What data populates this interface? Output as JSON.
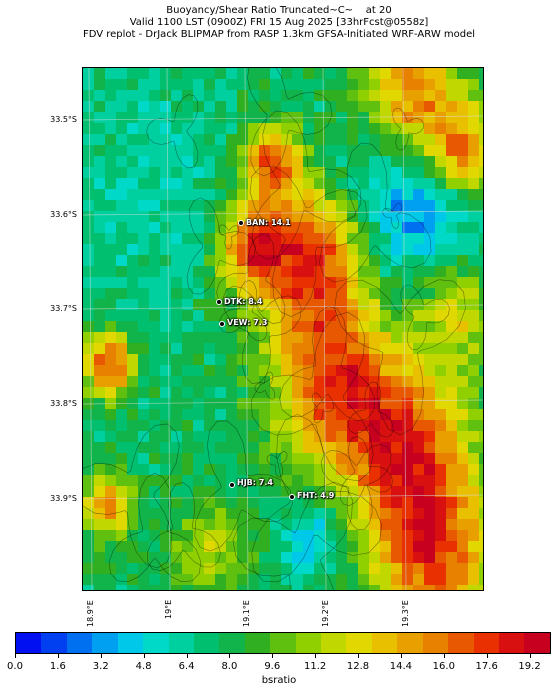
{
  "title": {
    "line1": "Buoyancy/Shear Ratio Truncated~C~    at 20",
    "line2": "Valid 1100 LST (0900Z) FRI 15 Aug 2025 [33hrFcst@0558z]",
    "line3": "FDV replot - DrJack BLIPMAP from RASP 1.3km GFSA-Initiated WRF-ARW model"
  },
  "map": {
    "lat_labels": [
      "33.5°S",
      "33.6°S",
      "33.7°S",
      "33.8°S",
      "33.9°S"
    ],
    "lon_labels": [
      "18.9°E",
      "19°E",
      "19.1°E",
      "19.2°E",
      "19.3°E"
    ],
    "stations": [
      {
        "name": "BAN: 14.1",
        "value": 14.1
      },
      {
        "name": "DTK: 8.4",
        "value": 8.4
      },
      {
        "name": "VEW: 7.3",
        "value": 7.3
      },
      {
        "name": "HJB: 7.4",
        "value": 7.4
      },
      {
        "name": "FHT: 4.9",
        "value": 4.9
      }
    ]
  },
  "colorbar": {
    "label": "bsratio",
    "ticks": [
      "0.0",
      "1.6",
      "3.2",
      "4.8",
      "6.4",
      "8.0",
      "9.6",
      "11.2",
      "12.8",
      "14.4",
      "16.0",
      "17.6",
      "19.2"
    ],
    "colors": [
      "#0010f0",
      "#0040f0",
      "#0070f0",
      "#00a0f0",
      "#00c8e8",
      "#00d8c8",
      "#00d0a0",
      "#00c070",
      "#10b44a",
      "#30b020",
      "#60c010",
      "#90d000",
      "#c0d800",
      "#e0d800",
      "#e8c000",
      "#e8a000",
      "#e88000",
      "#e85800",
      "#e83000",
      "#d81010",
      "#c80020"
    ],
    "range": [
      0.0,
      20.0
    ]
  }
}
